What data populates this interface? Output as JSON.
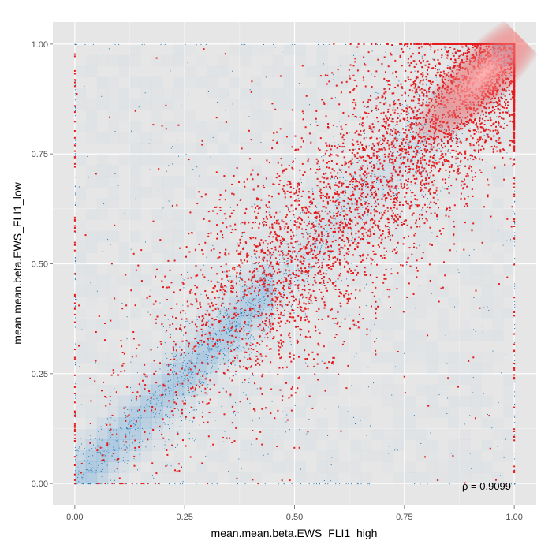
{
  "chart_data": {
    "type": "scatter",
    "title": "",
    "xlabel": "mean.mean.beta.EWS_FLI1_high",
    "ylabel": "mean.mean.beta.EWS_FLI1_low",
    "xlim": [
      -0.05,
      1.05
    ],
    "ylim": [
      -0.05,
      1.05
    ],
    "x_ticks": [
      0.0,
      0.25,
      0.5,
      0.75,
      1.0
    ],
    "y_ticks": [
      0.0,
      0.25,
      0.5,
      0.75,
      1.0
    ],
    "x_tick_labels": [
      "0.00",
      "0.25",
      "0.50",
      "0.75",
      "1.00"
    ],
    "y_tick_labels": [
      "0.00",
      "0.25",
      "0.50",
      "0.75",
      "1.00"
    ],
    "grid": true,
    "annotation": "ρ = 0.9099",
    "annotation_placement": "bottom-right",
    "layers": [
      {
        "kind": "density",
        "description": "blue 2D density tiles of all points, concentrated along diagonal"
      },
      {
        "kind": "points",
        "color": "#1f78b4",
        "size": "tiny",
        "distribution": "dense along diagonal 0-1"
      },
      {
        "kind": "points",
        "color": "#e41a1c",
        "size": "small",
        "distribution": "heavy in upper-right, concentrated near (0.95, 0.95), spreading toward (0.1, 0.05)"
      }
    ],
    "highlight_glow": {
      "x": 0.93,
      "y": 0.93,
      "color": "#ff9a9a"
    }
  },
  "colors": {
    "panel": "#e6e6e6",
    "grid_major": "#ffffff",
    "grid_minor": "#f2f2f2",
    "density": "#5aa0d8",
    "blue_points": "#1f78b4",
    "red_points": "#e41a1c"
  }
}
